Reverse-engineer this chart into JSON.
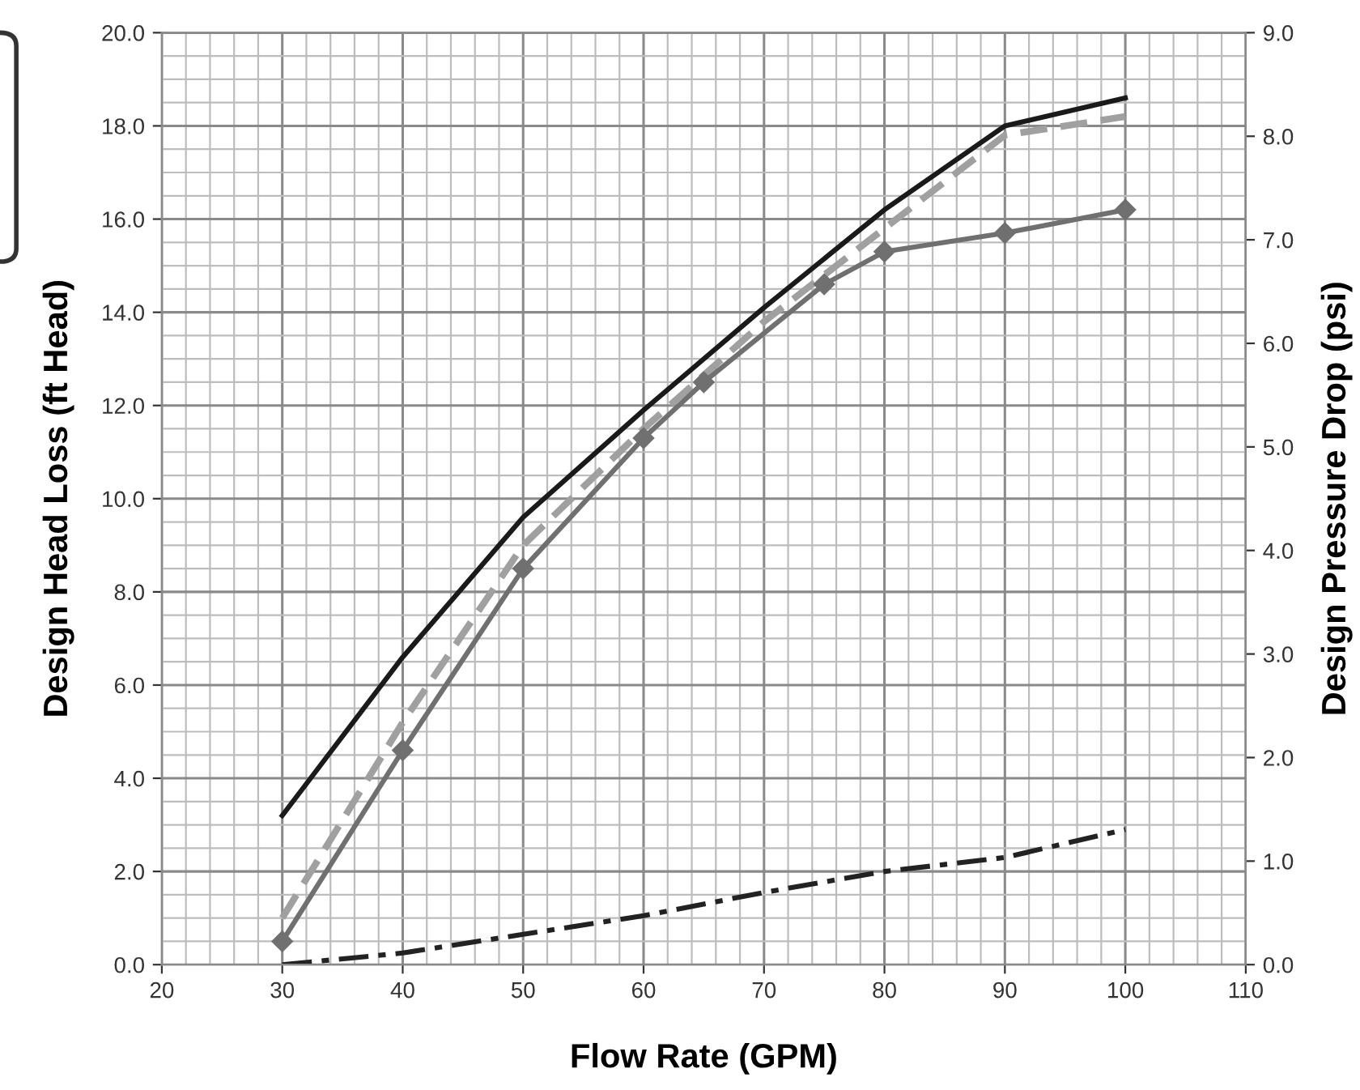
{
  "chart_data": {
    "type": "line",
    "xlabel": "Flow Rate (GPM)",
    "ylabel": "Design Head Loss (ft Head)",
    "y2label": "Design Pressure Drop (psi)",
    "xlim": [
      20,
      110
    ],
    "xticks": [
      20,
      30,
      40,
      50,
      60,
      70,
      80,
      90,
      100,
      110
    ],
    "ylim": [
      0,
      20
    ],
    "yticks": [
      {
        "value": 0,
        "label": "0.0"
      },
      {
        "value": 2,
        "label": "2.0"
      },
      {
        "value": 4,
        "label": "4.0"
      },
      {
        "value": 6,
        "label": "6.0"
      },
      {
        "value": 8,
        "label": "8.0"
      },
      {
        "value": 10,
        "label": "10.0"
      },
      {
        "value": 12,
        "label": "12.0"
      },
      {
        "value": 14,
        "label": "14.0"
      },
      {
        "value": 16,
        "label": "16.0"
      },
      {
        "value": 18,
        "label": "18.0"
      },
      {
        "value": 20,
        "label": "20.0"
      }
    ],
    "y2lim": [
      0,
      9
    ],
    "y2ticks": [
      {
        "value": 0,
        "label": "0.0"
      },
      {
        "value": 1,
        "label": "1.0"
      },
      {
        "value": 2,
        "label": "2.0"
      },
      {
        "value": 3,
        "label": "3.0"
      },
      {
        "value": 4,
        "label": "4.0"
      },
      {
        "value": 5,
        "label": "5.0"
      },
      {
        "value": 6,
        "label": "6.0"
      },
      {
        "value": 7,
        "label": "7.0"
      },
      {
        "value": 8,
        "label": "8.0"
      },
      {
        "value": 9,
        "label": "9.0"
      }
    ],
    "grid": true,
    "series": [
      {
        "color": "#1a1a1a",
        "line_style": "solid",
        "marker": "none",
        "x": [
          30,
          40,
          50,
          60,
          70,
          80,
          90,
          100
        ],
        "values": [
          3.2,
          6.6,
          9.6,
          11.9,
          14.1,
          16.2,
          18.0,
          18.6
        ]
      },
      {
        "color": "#a0a0a0",
        "line_style": "dashed",
        "marker": "none",
        "x": [
          30,
          40,
          50,
          60,
          70,
          80,
          90,
          100
        ],
        "values": [
          1.0,
          5.2,
          9.0,
          11.5,
          13.8,
          15.8,
          17.8,
          18.2
        ]
      },
      {
        "color": "#707070",
        "line_style": "solid",
        "marker": "diamond",
        "x": [
          30,
          40,
          50,
          60,
          65,
          75,
          80,
          90,
          100
        ],
        "values": [
          0.5,
          4.6,
          8.5,
          11.3,
          12.5,
          14.6,
          15.3,
          15.7,
          16.2
        ]
      },
      {
        "color": "#222222",
        "line_style": "dashdot",
        "marker": "none",
        "x": [
          30,
          40,
          50,
          60,
          70,
          80,
          90,
          100
        ],
        "values": [
          0.0,
          0.25,
          0.65,
          1.05,
          1.55,
          2.0,
          2.3,
          2.9
        ]
      }
    ]
  }
}
